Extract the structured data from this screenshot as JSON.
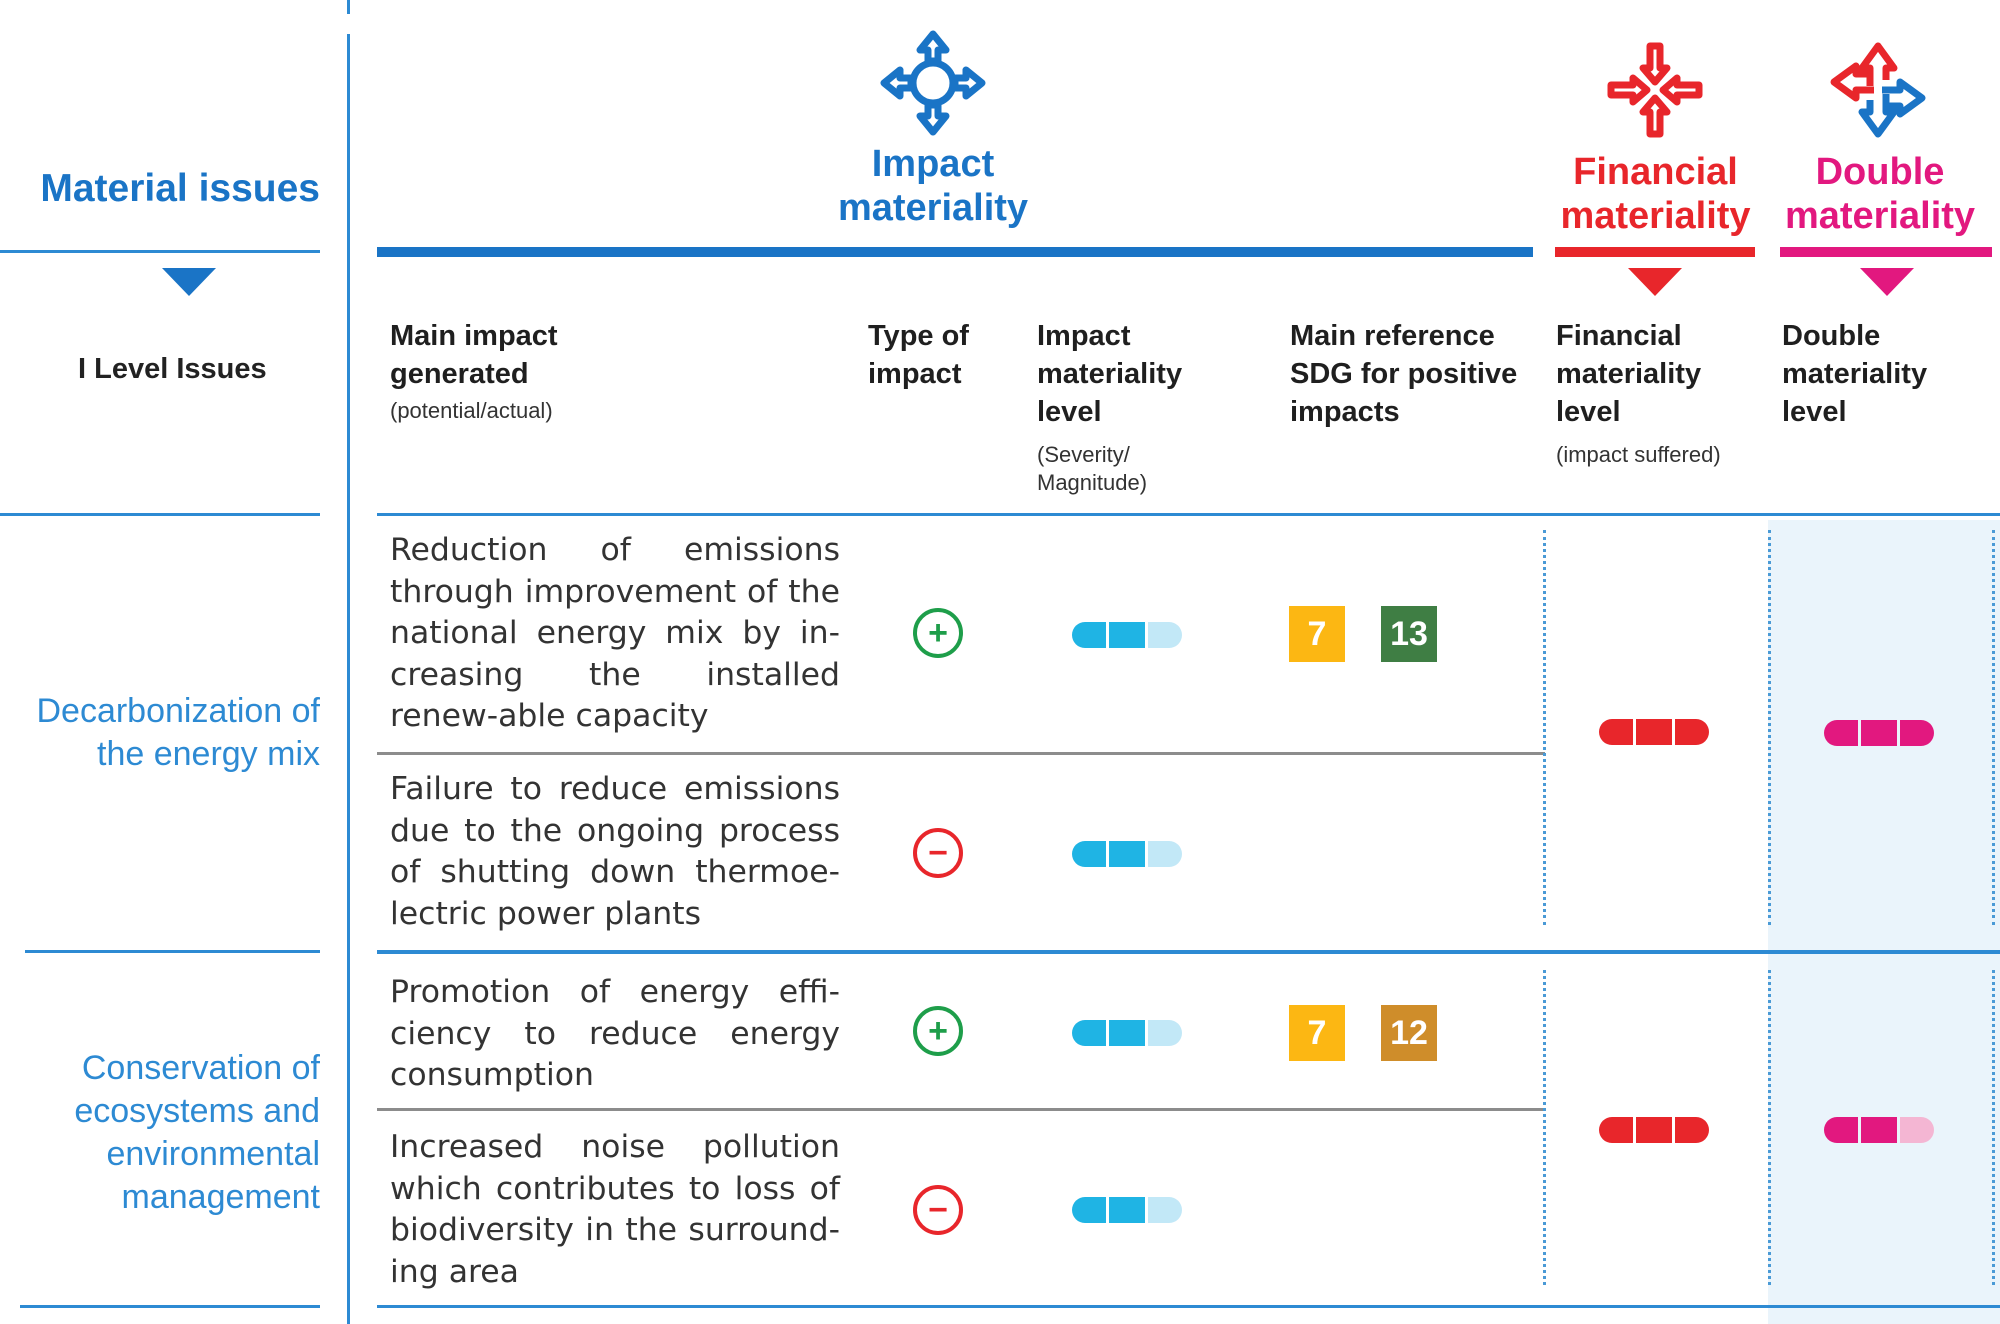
{
  "header": {
    "material_issues": "Material issues",
    "level_issues": "I Level Issues",
    "impact_materiality": "Impact materiality",
    "financial_materiality": "Financial materiality",
    "double_materiality": "Double materiality"
  },
  "columns": {
    "main_impact": {
      "title": "Main impact generated",
      "sub": "(potential/actual)"
    },
    "type_of_impact": {
      "title": "Type of impact"
    },
    "impact_level": {
      "title": "Impact materiality level",
      "sub": "(Severity/ Magnitude)"
    },
    "sdg": {
      "title": "Main reference SDG for positive impacts"
    },
    "financial_level": {
      "title": "Financial materiality level",
      "sub": "(impact suffered)"
    },
    "double_level": {
      "title": "Double materiality level"
    }
  },
  "issues": [
    {
      "name": "Decarbonization of the energy mix",
      "financial_level": 3,
      "double_level": 3,
      "impacts": [
        {
          "text": "Reduction of emissions through improvement of the national energy mix by in-creasing the installed renew-able capacity",
          "type": "positive",
          "type_symbol": "+",
          "level": 2,
          "sdgs": [
            "7",
            "13"
          ]
        },
        {
          "text": "Failure to reduce emissions due to the ongoing process of shutting down thermoe-lectric power plants",
          "type": "negative",
          "type_symbol": "−",
          "level": 2,
          "sdgs": []
        }
      ]
    },
    {
      "name": "Conservation of ecosystems and environmental management",
      "financial_level": 3,
      "double_level": 2,
      "impacts": [
        {
          "text": "Promotion of energy effi-ciency to reduce energy consumption",
          "type": "positive",
          "type_symbol": "+",
          "level": 2,
          "sdgs": [
            "7",
            "12"
          ]
        },
        {
          "text": "Increased noise pollution which contributes to loss of biodiversity in the surround-ing area",
          "type": "negative",
          "type_symbol": "−",
          "level": 2,
          "sdgs": []
        }
      ]
    }
  ],
  "colors": {
    "impact_blue": "#1a74c6",
    "impact_bar": "#1fb4e4",
    "impact_bar_light": "#c2e8f7",
    "financial_red": "#e8262b",
    "double_pink": "#e2187f",
    "double_pink_light": "#f4b6d3",
    "positive_green": "#1e9e4a",
    "negative_red": "#e8262b",
    "sdg_7": "#fcb713",
    "sdg_13": "#3f7e44",
    "sdg_12": "#cf8d2a",
    "shade": "#eaf4fb"
  },
  "icons": {
    "impact": "four-arrows-outward-icon",
    "financial": "four-arrows-inward-icon",
    "double": "two-way-arrows-icon"
  }
}
